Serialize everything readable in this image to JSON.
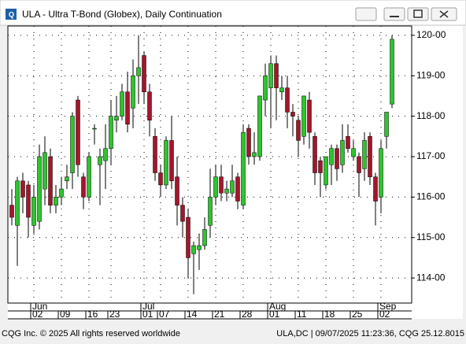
{
  "window": {
    "title": "ULA - Ultra T-Bond (Globex), Daily Continuation"
  },
  "chart_data": {
    "type": "candlestick",
    "categories": [
      null,
      null,
      null,
      null,
      "02",
      null,
      null,
      null,
      null,
      "09",
      null,
      null,
      null,
      null,
      "16",
      null,
      null,
      null,
      "23",
      null,
      null,
      null,
      null,
      null,
      "01",
      null,
      null,
      "07",
      null,
      null,
      null,
      null,
      "14",
      null,
      null,
      null,
      null,
      "21",
      null,
      null,
      null,
      null,
      "28",
      null,
      null,
      null,
      null,
      "01",
      null,
      null,
      null,
      null,
      "11",
      null,
      null,
      null,
      null,
      "18",
      null,
      null,
      null,
      null,
      "25",
      null,
      null,
      null,
      null,
      "02",
      null,
      null
    ],
    "months": [
      null,
      null,
      null,
      null,
      "Jun",
      null,
      null,
      null,
      null,
      null,
      null,
      null,
      null,
      null,
      null,
      null,
      null,
      null,
      null,
      null,
      null,
      null,
      null,
      null,
      "Jul",
      null,
      null,
      null,
      null,
      null,
      null,
      null,
      null,
      null,
      null,
      null,
      null,
      null,
      null,
      null,
      null,
      null,
      null,
      null,
      null,
      null,
      null,
      "Aug",
      null,
      null,
      null,
      null,
      null,
      null,
      null,
      null,
      null,
      null,
      null,
      null,
      null,
      null,
      null,
      null,
      null,
      null,
      null,
      "Sep",
      null,
      null
    ],
    "open": [
      115.8,
      115.3,
      116.4,
      116.3,
      115.3,
      115.4,
      116.2,
      117.0,
      115.8,
      116.0,
      116.4,
      116.6,
      118.4,
      116.5,
      116.0,
      117.7,
      116.8,
      116.9,
      117.2,
      117.9,
      118.0,
      118.6,
      118.2,
      119.0,
      119.5,
      118.6,
      117.5,
      116.6,
      116.3,
      117.4,
      116.5,
      115.8,
      115.5,
      114.6,
      114.7,
      114.8,
      115.3,
      116.0,
      116.5,
      116.1,
      116.1,
      116.5,
      115.8,
      117.7,
      117.0,
      117.0,
      118.4,
      118.7,
      119.3,
      118.6,
      118.7,
      118.1,
      117.9,
      117.5,
      118.4,
      117.5,
      116.9,
      116.3,
      116.8,
      117.2,
      116.8,
      117.5,
      117.0,
      117.0,
      116.7,
      117.5,
      116.5,
      116.0,
      117.5,
      118.3
    ],
    "high": [
      116.2,
      116.5,
      116.6,
      116.4,
      116.3,
      117.3,
      117.5,
      117.2,
      116.3,
      116.5,
      116.8,
      118.1,
      118.5,
      116.6,
      117.1,
      117.8,
      117.2,
      117.8,
      118.4,
      118.5,
      118.8,
      119.1,
      119.4,
      120.0,
      119.6,
      118.8,
      117.7,
      116.8,
      117.5,
      118.0,
      117.0,
      116.0,
      115.7,
      114.9,
      115.1,
      115.5,
      116.7,
      116.8,
      116.8,
      116.4,
      116.8,
      116.6,
      117.8,
      117.8,
      117.6,
      118.5,
      119.3,
      119.5,
      119.5,
      119.0,
      119.0,
      118.3,
      118.0,
      118.5,
      118.6,
      117.6,
      117.0,
      117.0,
      117.3,
      117.3,
      117.8,
      117.8,
      117.4,
      117.1,
      117.6,
      117.6,
      116.6,
      117.4,
      118.1,
      120.0
    ],
    "low": [
      115.3,
      114.3,
      115.6,
      115.0,
      115.1,
      115.2,
      115.8,
      115.6,
      115.6,
      115.8,
      116.2,
      116.2,
      116.5,
      115.7,
      115.9,
      117.3,
      115.8,
      116.2,
      116.8,
      117.6,
      117.9,
      117.6,
      117.7,
      118.3,
      118.3,
      117.5,
      116.4,
      116.0,
      116.2,
      116.2,
      115.3,
      115.0,
      114.0,
      113.6,
      114.2,
      114.7,
      115.0,
      115.8,
      115.9,
      115.9,
      116.0,
      115.7,
      115.7,
      116.8,
      116.8,
      116.9,
      118.0,
      117.7,
      117.9,
      118.4,
      117.7,
      117.5,
      117.0,
      117.3,
      117.2,
      116.3,
      116.0,
      116.2,
      116.3,
      116.4,
      116.6,
      117.1,
      116.9,
      116.0,
      116.4,
      116.3,
      115.3,
      115.6,
      117.2,
      118.2
    ],
    "close": [
      115.5,
      116.4,
      116.0,
      115.5,
      116.0,
      117.0,
      117.1,
      115.8,
      116.0,
      116.2,
      116.5,
      118.0,
      116.8,
      116.0,
      117.0,
      117.7,
      117.0,
      117.2,
      118.0,
      118.0,
      118.6,
      117.8,
      119.0,
      119.2,
      118.6,
      117.9,
      116.6,
      116.3,
      117.4,
      116.4,
      115.8,
      115.4,
      114.5,
      114.8,
      114.8,
      115.2,
      116.0,
      116.5,
      116.1,
      116.2,
      116.4,
      115.9,
      117.6,
      117.0,
      117.1,
      118.5,
      119.0,
      119.3,
      118.7,
      118.7,
      118.1,
      118.0,
      117.4,
      118.5,
      117.6,
      116.6,
      116.6,
      117.0,
      117.2,
      116.7,
      117.4,
      117.2,
      117.2,
      116.6,
      117.4,
      116.5,
      115.9,
      117.2,
      118.1,
      119.9
    ],
    "up_color": "#2ec42e",
    "down_color": "#a3162c",
    "ylim": [
      113.38,
      120.23
    ],
    "yticks": [
      {
        "value": 114,
        "label": "114-00"
      },
      {
        "value": 115,
        "label": "115-00"
      },
      {
        "value": 116,
        "label": "116-00"
      },
      {
        "value": 117,
        "label": "117-00"
      },
      {
        "value": 118,
        "label": "118-00"
      },
      {
        "value": 119,
        "label": "119-00"
      },
      {
        "value": 120,
        "label": "120-00"
      }
    ],
    "grid": true
  },
  "footer": {
    "left": "CQG Inc. © 2025 All rights reserved worldwide",
    "right": "ULA,DC | 09/07/2025 11:23:36, CQG 25.12.8015"
  }
}
